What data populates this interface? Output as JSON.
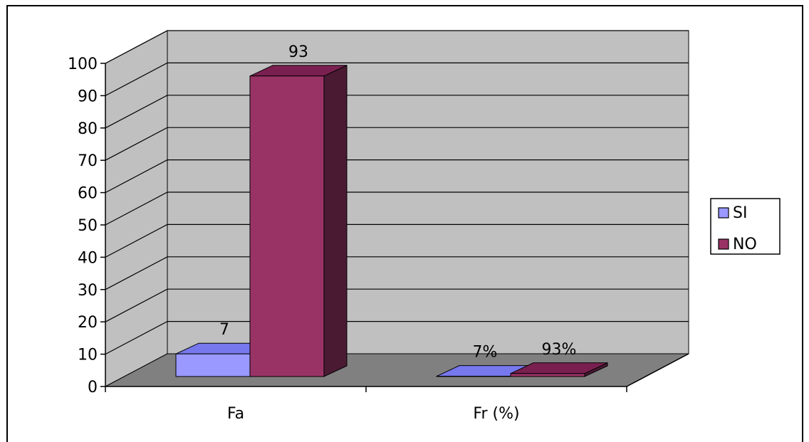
{
  "chart_data": {
    "type": "bar",
    "style": "3d-clustered-column",
    "categories": [
      "Fa",
      "Fr (%)"
    ],
    "series": [
      {
        "name": "SI",
        "values": [
          7,
          0.07
        ],
        "data_labels": [
          "7",
          "7%"
        ],
        "color": "#9999ff",
        "top_color": "#7777ee",
        "side_color": "#5555cc"
      },
      {
        "name": "NO",
        "values": [
          93,
          0.93
        ],
        "data_labels": [
          "93",
          "93%"
        ],
        "color": "#993366",
        "top_color": "#7a2050",
        "side_color": "#4a1a33"
      }
    ],
    "y_ticks": [
      "0",
      "10",
      "20",
      "30",
      "40",
      "50",
      "60",
      "70",
      "80",
      "90",
      "100"
    ],
    "ylim": [
      0,
      100
    ],
    "grid": true,
    "legend_position": "right",
    "colors": {
      "back_wall": "#c0c0c0",
      "floor": "#808080",
      "gridline": "#000000"
    }
  }
}
